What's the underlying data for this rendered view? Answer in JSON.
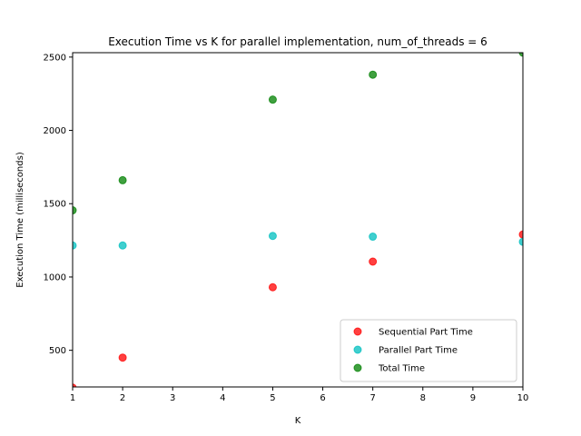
{
  "chart_data": {
    "type": "scatter",
    "title": "Execution Time vs K for parallel implementation, num_of_threads = 6",
    "xlabel": "K",
    "ylabel": "Execution Time (milliseconds)",
    "xlim": [
      1,
      10
    ],
    "ylim": [
      250,
      2530
    ],
    "xticks": [
      1,
      2,
      3,
      4,
      5,
      6,
      7,
      8,
      9,
      10
    ],
    "yticks": [
      500,
      1000,
      1500,
      2000,
      2500
    ],
    "legend_position": "lower-right",
    "grid": false,
    "x": [
      1,
      2,
      5,
      7,
      10
    ],
    "series": [
      {
        "name": "Sequential Part Time",
        "color": "#ff0000",
        "values": [
          245,
          450,
          930,
          1105,
          1290
        ]
      },
      {
        "name": "Parallel Part Time",
        "color": "#00bfbf",
        "values": [
          1215,
          1215,
          1280,
          1275,
          1240
        ]
      },
      {
        "name": "Total Time",
        "color": "#008000",
        "values": [
          1455,
          1660,
          2210,
          2380,
          2530
        ]
      }
    ]
  }
}
